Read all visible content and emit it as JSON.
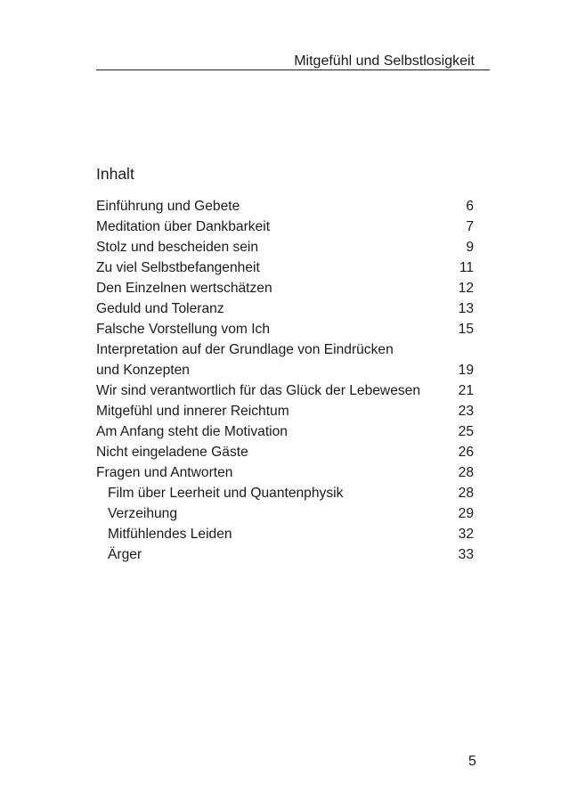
{
  "header": {
    "running_title": "Mitgefühl und Selbstlosigkeit"
  },
  "toc": {
    "title": "Inhalt",
    "entries": [
      {
        "label": "Einführung und Gebete",
        "page": "6",
        "level": 1
      },
      {
        "label": "Meditation über Dankbarkeit",
        "page": "7",
        "level": 1
      },
      {
        "label": "Stolz und bescheiden sein",
        "page": "9",
        "level": 1
      },
      {
        "label": "Zu viel Selbstbefangenheit",
        "page": "11",
        "level": 1
      },
      {
        "label": "Den Einzelnen wertschätzen",
        "page": "12",
        "level": 1
      },
      {
        "label": "Geduld und Toleranz",
        "page": "13",
        "level": 1
      },
      {
        "label": "Falsche Vorstellung vom Ich",
        "page": "15",
        "level": 1
      },
      {
        "label": "Interpretation auf der Grundlage von Eindrücken\nund Konzepten",
        "page": "19",
        "level": 1
      },
      {
        "label": "Wir sind verantwortlich für das Glück der Lebewesen",
        "page": "21",
        "level": 1
      },
      {
        "label": "Mitgefühl und innerer Reichtum",
        "page": "23",
        "level": 1
      },
      {
        "label": "Am Anfang steht die Motivation",
        "page": "25",
        "level": 1
      },
      {
        "label": "Nicht eingeladene Gäste",
        "page": "26",
        "level": 1
      },
      {
        "label": "Fragen und Antworten",
        "page": "28",
        "level": 1
      },
      {
        "label": "Film über Leerheit und Quantenphysik",
        "page": "28",
        "level": 2
      },
      {
        "label": "Verzeihung",
        "page": "29",
        "level": 2
      },
      {
        "label": "Mitfühlendes Leiden",
        "page": "32",
        "level": 2
      },
      {
        "label": "Ärger",
        "page": "33",
        "level": 2
      }
    ]
  },
  "footer": {
    "page_number": "5"
  }
}
